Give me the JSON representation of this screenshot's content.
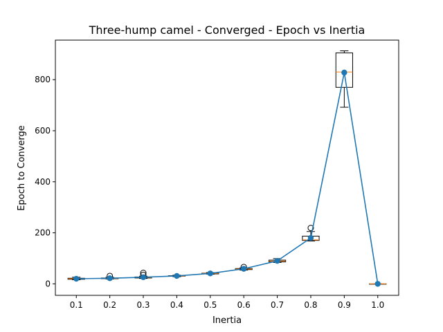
{
  "chart_data": {
    "type": "box+line",
    "title": "Three-hump camel - Converged - Epoch vs Inertia",
    "xlabel": "Inertia",
    "ylabel": "Epoch to Converge",
    "categories": [
      "0.1",
      "0.2",
      "0.3",
      "0.4",
      "0.5",
      "0.6",
      "0.7",
      "0.8",
      "0.9",
      "1.0"
    ],
    "ylim": [
      -45,
      955
    ],
    "yticks": [
      0,
      200,
      400,
      600,
      800
    ],
    "ytick_labels": [
      "0",
      "200",
      "400",
      "600",
      "800"
    ],
    "grid": false,
    "legend": "none",
    "line_series": {
      "values": [
        20,
        22,
        26,
        31,
        41,
        59,
        90,
        180,
        828,
        0
      ],
      "color": "#1f77b4"
    },
    "boxes": [
      {
        "x": "0.1",
        "whisker_low": 16,
        "q1": 18,
        "median": 20,
        "q3": 22,
        "whisker_high": 26,
        "fliers": []
      },
      {
        "x": "0.2",
        "whisker_low": 19,
        "q1": 20,
        "median": 21,
        "q3": 23,
        "whisker_high": 26,
        "fliers": [
          31
        ]
      },
      {
        "x": "0.3",
        "whisker_low": 21,
        "q1": 23,
        "median": 25,
        "q3": 27,
        "whisker_high": 30,
        "fliers": [
          35,
          43
        ]
      },
      {
        "x": "0.4",
        "whisker_low": 28,
        "q1": 30,
        "median": 31,
        "q3": 32,
        "whisker_high": 34,
        "fliers": []
      },
      {
        "x": "0.5",
        "whisker_low": 38,
        "q1": 39,
        "median": 41,
        "q3": 42,
        "whisker_high": 44,
        "fliers": []
      },
      {
        "x": "0.6",
        "whisker_low": 54,
        "q1": 56,
        "median": 58,
        "q3": 60,
        "whisker_high": 63,
        "fliers": [
          66
        ]
      },
      {
        "x": "0.7",
        "whisker_low": 84,
        "q1": 86,
        "median": 89,
        "q3": 93,
        "whisker_high": 99,
        "fliers": []
      },
      {
        "x": "0.8",
        "whisker_low": 168,
        "q1": 170,
        "median": 172,
        "q3": 187,
        "whisker_high": 205,
        "fliers": [
          219
        ]
      },
      {
        "x": "0.9",
        "whisker_low": 692,
        "q1": 770,
        "median": 830,
        "q3": 905,
        "whisker_high": 913,
        "fliers": []
      },
      {
        "x": "1.0",
        "whisker_low": 0,
        "q1": 0,
        "median": 0,
        "q3": 0,
        "whisker_high": 0,
        "fliers": []
      }
    ],
    "colors": {
      "line": "#1f77b4",
      "box": "#000000",
      "median": "#ff7f0e",
      "flier": "#000000"
    }
  }
}
